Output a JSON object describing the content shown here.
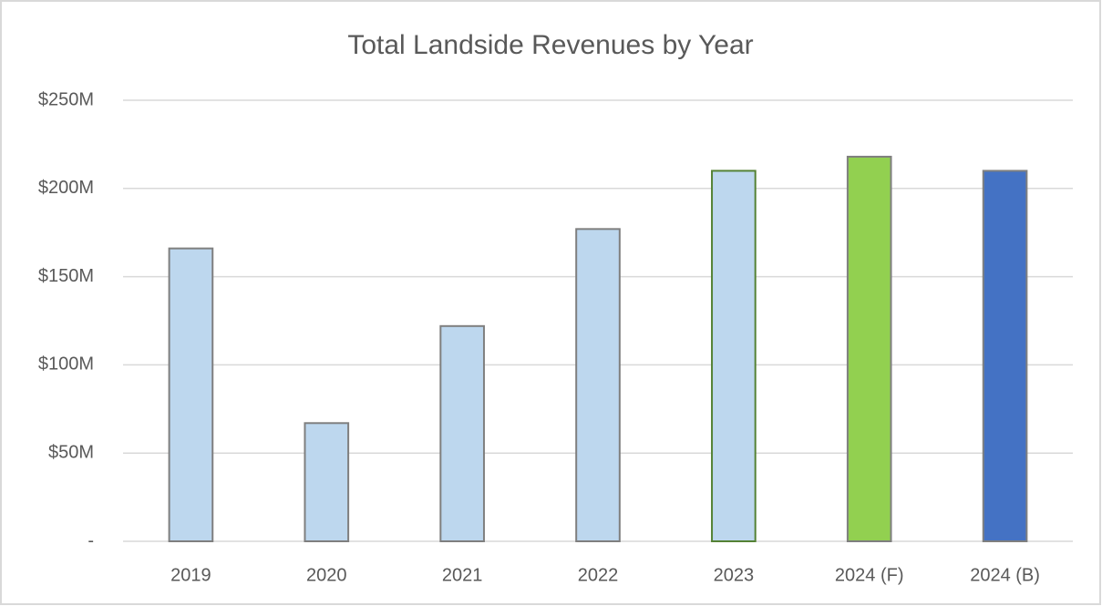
{
  "chart_data": {
    "type": "bar",
    "title": "Total Landside Revenues by Year",
    "categories": [
      "2019",
      "2020",
      "2021",
      "2022",
      "2023",
      "2024 (F)",
      "2024 (B)"
    ],
    "values": [
      166,
      67,
      122,
      177,
      210,
      218,
      210
    ],
    "colors": [
      "#bdd7ee",
      "#bdd7ee",
      "#bdd7ee",
      "#bdd7ee",
      "#bdd7ee",
      "#92d050",
      "#4472c4"
    ],
    "edge_colors": [
      "#7f7f7f",
      "#7f7f7f",
      "#7f7f7f",
      "#7f7f7f",
      "#548235",
      "#7f7f7f",
      "#7f7f7f"
    ],
    "ylim": [
      0,
      250
    ],
    "yticks": [
      {
        "value": 0,
        "label": "-"
      },
      {
        "value": 50,
        "label": "$50M"
      },
      {
        "value": 100,
        "label": "$100M"
      },
      {
        "value": 150,
        "label": "$150M"
      },
      {
        "value": 200,
        "label": "$200M"
      },
      {
        "value": 250,
        "label": "$250M"
      }
    ],
    "grid": true
  }
}
